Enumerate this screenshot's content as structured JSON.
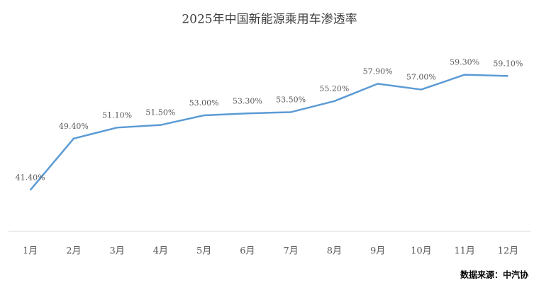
{
  "chart_data": {
    "type": "line",
    "title": "2025年中国新能源乘用车渗透率",
    "categories": [
      "1月",
      "2月",
      "3月",
      "4月",
      "5月",
      "6月",
      "7月",
      "8月",
      "9月",
      "10月",
      "11月",
      "12月"
    ],
    "values": [
      41.4,
      49.4,
      51.1,
      51.5,
      53.0,
      53.3,
      53.5,
      55.2,
      57.9,
      57.0,
      59.3,
      59.1
    ],
    "value_labels": [
      "41.40%",
      "49.40%",
      "51.10%",
      "51.50%",
      "53.00%",
      "53.30%",
      "53.50%",
      "55.20%",
      "57.90%",
      "57.00%",
      "59.30%",
      "59.10%"
    ],
    "color": "#5b9bd5",
    "ylim": [
      35,
      62
    ],
    "source": "数据来源：中汽协"
  }
}
